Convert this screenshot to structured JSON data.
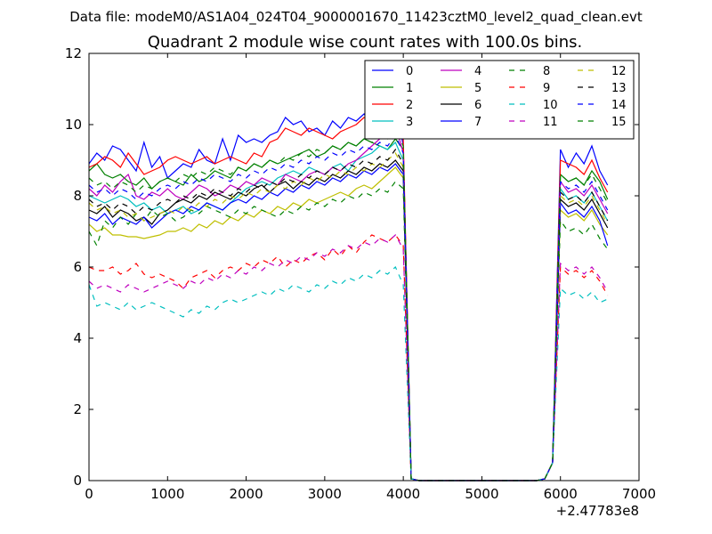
{
  "header": {
    "data_file": "Data file: modeM0/AS1A04_024T04_9000001670_11423cztM0_level2_quad_clean.evt"
  },
  "chart_data": {
    "type": "line",
    "title": "Quadrant 2 module wise count rates with 100.0s bins.",
    "xlabel": "",
    "ylabel": "",
    "x_offset_label": "+2.47783e8",
    "xlim": [
      0,
      7000
    ],
    "ylim": [
      0,
      12
    ],
    "xticks": [
      0,
      1000,
      2000,
      3000,
      4000,
      5000,
      6000,
      7000
    ],
    "yticks": [
      0,
      2,
      4,
      6,
      8,
      10,
      12
    ],
    "grid": false,
    "legend_position": "top-right",
    "legend_columns": 4,
    "x": [
      0,
      100,
      200,
      300,
      400,
      500,
      600,
      700,
      800,
      900,
      1000,
      1100,
      1200,
      1300,
      1400,
      1500,
      1600,
      1700,
      1800,
      1900,
      2000,
      2100,
      2200,
      2300,
      2400,
      2500,
      2600,
      2700,
      2800,
      2900,
      3000,
      3100,
      3200,
      3300,
      3400,
      3500,
      3600,
      3700,
      3800,
      3900,
      4000,
      4100,
      4200,
      4300,
      4400,
      4500,
      4600,
      4700,
      4800,
      4900,
      5000,
      5100,
      5200,
      5300,
      5400,
      5500,
      5600,
      5700,
      5800,
      5900,
      6000,
      6100,
      6200,
      6300,
      6400,
      6500,
      6600
    ],
    "series": [
      {
        "name": "0",
        "color": "#0000ff",
        "dash": "solid",
        "values": [
          8.9,
          9.2,
          9.0,
          9.4,
          9.3,
          9.0,
          8.7,
          9.5,
          8.8,
          9.1,
          8.5,
          8.7,
          8.9,
          8.8,
          9.3,
          9.0,
          8.9,
          9.6,
          9.0,
          9.7,
          9.5,
          9.6,
          9.5,
          9.7,
          9.8,
          10.2,
          10.0,
          10.1,
          9.8,
          9.9,
          9.7,
          10.1,
          9.9,
          10.2,
          10.1,
          10.3,
          10.0,
          10.4,
          10.2,
          10.6,
          9.4,
          0.05,
          0,
          0,
          0,
          0,
          0,
          0,
          0,
          0,
          0,
          0,
          0,
          0,
          0,
          0,
          0,
          0,
          0.05,
          0.5,
          9.3,
          8.8,
          9.2,
          8.9,
          9.4,
          8.7,
          8.3
        ]
      },
      {
        "name": "1",
        "color": "#008000",
        "dash": "solid",
        "values": [
          8.7,
          8.9,
          8.6,
          8.5,
          8.6,
          8.4,
          8.3,
          8.5,
          8.2,
          8.4,
          8.5,
          8.4,
          8.3,
          8.6,
          8.4,
          8.5,
          8.7,
          8.6,
          8.5,
          8.8,
          8.7,
          8.9,
          8.8,
          9.0,
          8.9,
          9.0,
          9.1,
          9.2,
          9.3,
          9.1,
          9.2,
          9.4,
          9.3,
          9.5,
          9.4,
          9.6,
          9.5,
          9.4,
          9.3,
          9.6,
          9.3,
          0.05,
          0,
          0,
          0,
          0,
          0,
          0,
          0,
          0,
          0,
          0,
          0,
          0,
          0,
          0,
          0,
          0,
          0.05,
          0.5,
          8.6,
          8.4,
          8.5,
          8.3,
          8.7,
          8.4,
          7.9
        ]
      },
      {
        "name": "2",
        "color": "#ff0000",
        "dash": "solid",
        "values": [
          8.8,
          8.9,
          9.1,
          9.0,
          8.8,
          9.2,
          8.9,
          8.6,
          8.7,
          8.8,
          9.0,
          9.1,
          9.0,
          8.9,
          9.0,
          9.1,
          8.9,
          9.0,
          9.1,
          9.0,
          8.9,
          9.2,
          9.1,
          9.5,
          9.6,
          9.9,
          9.8,
          9.7,
          9.9,
          9.8,
          9.7,
          9.6,
          9.8,
          9.9,
          10.0,
          10.2,
          10.1,
          10.3,
          10.2,
          10.4,
          9.6,
          0.05,
          0,
          0,
          0,
          0,
          0,
          0,
          0,
          0,
          0,
          0,
          0,
          0,
          0,
          0,
          0,
          0,
          0.05,
          0.5,
          9.0,
          8.9,
          8.8,
          8.6,
          9.0,
          8.5,
          8.1
        ]
      },
      {
        "name": "3",
        "color": "#00bfbf",
        "dash": "solid",
        "values": [
          8.0,
          7.9,
          7.8,
          7.9,
          8.0,
          7.9,
          7.7,
          7.8,
          7.6,
          7.7,
          7.5,
          7.6,
          7.7,
          7.5,
          7.6,
          7.8,
          7.7,
          7.6,
          7.8,
          8.0,
          8.2,
          8.3,
          8.4,
          8.3,
          8.5,
          8.6,
          8.7,
          8.6,
          8.8,
          8.7,
          8.6,
          8.8,
          8.9,
          8.7,
          9.0,
          9.1,
          9.2,
          9.4,
          9.3,
          9.5,
          9.0,
          0.05,
          0,
          0,
          0,
          0,
          0,
          0,
          0,
          0,
          0,
          0,
          0,
          0,
          0,
          0,
          0,
          0,
          0.05,
          0.5,
          8.2,
          7.9,
          8.0,
          7.8,
          8.1,
          7.7,
          7.3
        ]
      },
      {
        "name": "4",
        "color": "#bf00bf",
        "dash": "solid",
        "values": [
          8.2,
          8.0,
          8.3,
          8.1,
          8.4,
          8.6,
          8.0,
          7.9,
          8.1,
          8.0,
          8.2,
          8.0,
          7.9,
          8.1,
          8.3,
          8.2,
          8.0,
          8.1,
          8.3,
          8.2,
          8.4,
          8.3,
          8.5,
          8.4,
          8.3,
          8.6,
          8.5,
          8.4,
          8.6,
          8.7,
          8.6,
          8.8,
          8.7,
          8.9,
          9.0,
          9.2,
          9.4,
          9.6,
          9.8,
          10.0,
          9.2,
          0.05,
          0,
          0,
          0,
          0,
          0,
          0,
          0,
          0,
          0,
          0,
          0,
          0,
          0,
          0,
          0,
          0,
          0.05,
          0.5,
          8.4,
          8.1,
          8.2,
          8.0,
          8.3,
          7.9,
          7.5
        ]
      },
      {
        "name": "5",
        "color": "#bfbf00",
        "dash": "solid",
        "values": [
          7.2,
          7.0,
          7.1,
          6.9,
          6.9,
          6.85,
          6.85,
          6.8,
          6.85,
          6.9,
          7.0,
          7.0,
          7.1,
          7.0,
          7.2,
          7.1,
          7.3,
          7.2,
          7.4,
          7.3,
          7.5,
          7.4,
          7.6,
          7.5,
          7.7,
          7.6,
          7.8,
          7.7,
          7.9,
          7.8,
          7.9,
          8.0,
          8.1,
          8.0,
          8.2,
          8.3,
          8.2,
          8.4,
          8.6,
          8.8,
          8.5,
          0.05,
          0,
          0,
          0,
          0,
          0,
          0,
          0,
          0,
          0,
          0,
          0,
          0,
          0,
          0,
          0,
          0,
          0.05,
          0.5,
          7.6,
          7.4,
          7.5,
          7.3,
          7.6,
          7.2,
          6.9
        ]
      },
      {
        "name": "6",
        "color": "#000000",
        "dash": "solid",
        "values": [
          7.6,
          7.5,
          7.7,
          7.4,
          7.6,
          7.5,
          7.3,
          7.4,
          7.2,
          7.5,
          7.6,
          7.8,
          7.9,
          7.8,
          8.0,
          7.9,
          8.1,
          8.0,
          7.9,
          8.1,
          8.0,
          8.2,
          8.3,
          8.1,
          8.3,
          8.4,
          8.2,
          8.4,
          8.3,
          8.5,
          8.4,
          8.6,
          8.5,
          8.7,
          8.6,
          8.8,
          8.7,
          8.9,
          8.8,
          9.0,
          8.7,
          0.05,
          0,
          0,
          0,
          0,
          0,
          0,
          0,
          0,
          0,
          0,
          0,
          0,
          0,
          0,
          0,
          0,
          0.05,
          0.5,
          7.9,
          7.7,
          7.8,
          7.6,
          7.9,
          7.5,
          7.1
        ]
      },
      {
        "name": "7",
        "color": "#0000ff",
        "dash": "solid",
        "values": [
          7.4,
          7.3,
          7.5,
          7.2,
          7.4,
          7.3,
          7.2,
          7.4,
          7.1,
          7.3,
          7.5,
          7.6,
          7.5,
          7.7,
          7.6,
          7.8,
          7.7,
          7.6,
          7.8,
          7.9,
          7.8,
          8.0,
          7.9,
          8.1,
          8.0,
          8.2,
          8.1,
          8.3,
          8.2,
          8.4,
          8.3,
          8.5,
          8.4,
          8.6,
          8.5,
          8.7,
          8.6,
          8.8,
          8.7,
          8.9,
          8.6,
          0.05,
          0,
          0,
          0,
          0,
          0,
          0,
          0,
          0,
          0,
          0,
          0,
          0,
          0,
          0,
          0,
          0,
          0.05,
          0.5,
          7.8,
          7.5,
          7.6,
          7.4,
          7.7,
          7.3,
          6.6
        ]
      },
      {
        "name": "8",
        "color": "#008000",
        "dash": "dashed",
        "values": [
          7.0,
          6.6,
          7.3,
          7.1,
          7.4,
          7.2,
          7.5,
          7.3,
          7.6,
          7.4,
          7.5,
          7.3,
          7.4,
          7.6,
          7.5,
          7.7,
          7.6,
          7.5,
          7.4,
          7.6,
          7.5,
          7.7,
          7.6,
          7.5,
          7.4,
          7.6,
          7.5,
          7.7,
          7.6,
          7.8,
          7.7,
          7.9,
          7.8,
          8.0,
          7.9,
          8.1,
          8.0,
          8.2,
          8.1,
          8.4,
          8.2,
          0.05,
          0,
          0,
          0,
          0,
          0,
          0,
          0,
          0,
          0,
          0,
          0,
          0,
          0,
          0,
          0,
          0,
          0.05,
          0.5,
          7.3,
          7.0,
          7.1,
          6.9,
          7.2,
          6.8,
          6.5
        ]
      },
      {
        "name": "9",
        "color": "#ff0000",
        "dash": "dashed",
        "values": [
          6.0,
          5.9,
          5.9,
          6.0,
          5.8,
          5.9,
          6.1,
          5.8,
          5.7,
          5.8,
          5.7,
          5.6,
          5.4,
          5.7,
          5.8,
          5.9,
          5.7,
          5.9,
          6.0,
          5.9,
          6.1,
          6.0,
          6.2,
          6.1,
          6.3,
          6.0,
          6.2,
          6.1,
          6.3,
          6.4,
          6.2,
          6.5,
          6.3,
          6.6,
          6.4,
          6.7,
          6.9,
          6.8,
          6.7,
          6.9,
          6.6,
          0.05,
          0,
          0,
          0,
          0,
          0,
          0,
          0,
          0,
          0,
          0,
          0,
          0,
          0,
          0,
          0,
          0,
          0.05,
          0.5,
          6.0,
          5.8,
          5.9,
          5.7,
          5.9,
          5.6,
          5.2
        ]
      },
      {
        "name": "10",
        "color": "#00bfbf",
        "dash": "dashed",
        "values": [
          5.5,
          4.9,
          5.0,
          4.9,
          4.8,
          5.0,
          4.8,
          4.9,
          5.0,
          4.9,
          4.8,
          4.7,
          4.6,
          4.8,
          4.7,
          4.9,
          4.8,
          5.0,
          5.1,
          5.0,
          5.1,
          5.2,
          5.3,
          5.2,
          5.4,
          5.3,
          5.5,
          5.4,
          5.3,
          5.5,
          5.4,
          5.6,
          5.5,
          5.7,
          5.6,
          5.8,
          5.7,
          5.9,
          5.8,
          6.0,
          5.5,
          0.05,
          0,
          0,
          0,
          0,
          0,
          0,
          0,
          0,
          0,
          0,
          0,
          0,
          0,
          0,
          0,
          0,
          0.05,
          0.5,
          5.4,
          5.2,
          5.3,
          5.1,
          5.3,
          5.0,
          5.1
        ]
      },
      {
        "name": "11",
        "color": "#bf00bf",
        "dash": "dashed",
        "values": [
          5.6,
          5.4,
          5.5,
          5.4,
          5.3,
          5.5,
          5.4,
          5.3,
          5.4,
          5.5,
          5.6,
          5.5,
          5.4,
          5.6,
          5.5,
          5.7,
          5.6,
          5.8,
          5.7,
          5.9,
          5.8,
          6.0,
          5.9,
          6.1,
          6.0,
          6.2,
          6.1,
          6.3,
          6.2,
          6.4,
          6.3,
          6.5,
          6.4,
          6.6,
          6.5,
          6.7,
          6.6,
          6.8,
          6.7,
          6.9,
          6.5,
          0.05,
          0,
          0,
          0,
          0,
          0,
          0,
          0,
          0,
          0,
          0,
          0,
          0,
          0,
          0,
          0,
          0,
          0.05,
          0.5,
          6.1,
          5.9,
          6.0,
          5.8,
          6.0,
          5.7,
          5.3
        ]
      },
      {
        "name": "12",
        "color": "#bfbf00",
        "dash": "dashed",
        "values": [
          7.8,
          7.6,
          7.7,
          7.5,
          7.6,
          7.4,
          7.5,
          7.3,
          7.4,
          7.5,
          7.6,
          7.5,
          7.7,
          7.6,
          7.8,
          7.7,
          7.9,
          7.8,
          8.0,
          7.9,
          8.1,
          8.0,
          8.2,
          8.1,
          8.3,
          8.2,
          8.4,
          8.3,
          8.5,
          8.4,
          8.6,
          8.5,
          8.7,
          8.6,
          8.8,
          8.7,
          8.9,
          8.8,
          9.0,
          9.2,
          8.8,
          0.05,
          0,
          0,
          0,
          0,
          0,
          0,
          0,
          0,
          0,
          0,
          0,
          0,
          0,
          0,
          0,
          0,
          0.05,
          0.5,
          8.0,
          7.8,
          7.9,
          7.7,
          8.0,
          7.6,
          7.2
        ]
      },
      {
        "name": "13",
        "color": "#000000",
        "dash": "dashed",
        "values": [
          7.9,
          7.7,
          7.8,
          7.6,
          7.8,
          7.7,
          7.5,
          7.7,
          7.6,
          7.8,
          7.9,
          7.8,
          8.0,
          7.9,
          8.1,
          8.0,
          8.2,
          8.1,
          8.0,
          8.2,
          8.1,
          8.3,
          8.2,
          8.4,
          8.3,
          8.5,
          8.4,
          8.6,
          8.5,
          8.7,
          8.6,
          8.8,
          8.7,
          8.9,
          8.8,
          9.0,
          8.9,
          9.1,
          9.0,
          9.3,
          8.9,
          0.05,
          0,
          0,
          0,
          0,
          0,
          0,
          0,
          0,
          0,
          0,
          0,
          0,
          0,
          0,
          0,
          0,
          0.05,
          0.5,
          8.1,
          7.9,
          8.0,
          7.8,
          8.1,
          7.7,
          7.3
        ]
      },
      {
        "name": "14",
        "color": "#0000ff",
        "dash": "dashed",
        "values": [
          8.3,
          8.1,
          8.2,
          8.0,
          8.2,
          8.1,
          7.9,
          8.1,
          8.0,
          8.2,
          8.3,
          8.2,
          8.4,
          8.3,
          8.5,
          8.4,
          8.6,
          8.5,
          8.4,
          8.6,
          8.5,
          8.7,
          8.6,
          8.8,
          8.7,
          8.9,
          8.8,
          9.0,
          8.9,
          9.1,
          9.0,
          9.2,
          9.1,
          9.3,
          9.2,
          9.4,
          9.3,
          9.5,
          9.4,
          9.7,
          9.2,
          0.05,
          0,
          0,
          0,
          0,
          0,
          0,
          0,
          0,
          0,
          0,
          0,
          0,
          0,
          0,
          0,
          0,
          0.05,
          0.5,
          8.4,
          8.2,
          8.3,
          8.1,
          8.4,
          8.0,
          7.6
        ]
      },
      {
        "name": "15",
        "color": "#008000",
        "dash": "dashed",
        "values": [
          8.5,
          8.3,
          8.4,
          8.2,
          8.4,
          8.3,
          8.1,
          8.3,
          8.2,
          8.4,
          8.5,
          8.4,
          8.6,
          8.5,
          8.7,
          8.6,
          8.8,
          8.7,
          8.6,
          8.8,
          8.7,
          8.9,
          8.8,
          9.0,
          8.9,
          9.1,
          9.0,
          9.2,
          9.1,
          9.3,
          9.2,
          9.4,
          9.3,
          9.5,
          9.4,
          9.6,
          9.5,
          9.7,
          9.6,
          9.9,
          9.4,
          0.05,
          0,
          0,
          0,
          0,
          0,
          0,
          0,
          0,
          0,
          0,
          0,
          0,
          0,
          0,
          0,
          0,
          0.05,
          0.5,
          8.6,
          8.4,
          8.5,
          8.3,
          8.6,
          8.2,
          7.8
        ]
      }
    ]
  }
}
